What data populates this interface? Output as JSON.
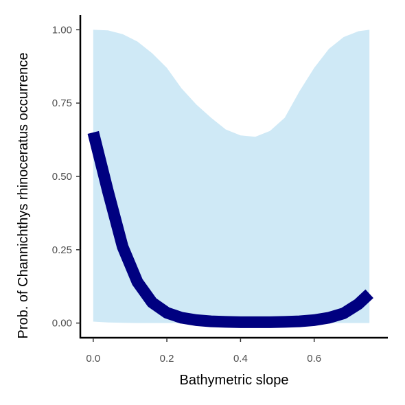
{
  "chart_data": {
    "type": "line",
    "title": "",
    "xlabel": "Bathymetric slope",
    "ylabel": "Prob. of  Channichthys rhinoceratus  occurrence",
    "xlim": [
      -0.035,
      0.8
    ],
    "ylim": [
      -0.05,
      1.05
    ],
    "x_ticks": [
      0.0,
      0.2,
      0.4,
      0.6
    ],
    "x_tick_labels": [
      "0.0",
      "0.2",
      "0.4",
      "0.6"
    ],
    "y_ticks": [
      0.0,
      0.25,
      0.5,
      0.75,
      1.0
    ],
    "y_tick_labels": [
      "0.00",
      "0.25",
      "0.50",
      "0.75",
      "1.00"
    ],
    "grid": false,
    "colors": {
      "line": "#000080",
      "ribbon": "#cfe9f6",
      "axis": "#000000",
      "tick_text": "#4d4d4d"
    },
    "series": [
      {
        "x": [
          0.0,
          0.04,
          0.08,
          0.12,
          0.16,
          0.2,
          0.24,
          0.28,
          0.32,
          0.36,
          0.4,
          0.44,
          0.48,
          0.52,
          0.56,
          0.6,
          0.64,
          0.68,
          0.72,
          0.75
        ],
        "y": [
          0.65,
          0.45,
          0.26,
          0.14,
          0.07,
          0.035,
          0.018,
          0.01,
          0.006,
          0.004,
          0.003,
          0.003,
          0.003,
          0.004,
          0.006,
          0.01,
          0.018,
          0.033,
          0.065,
          0.1
        ],
        "lower": [
          0.005,
          0.002,
          0.001,
          0.0,
          0.0,
          0.0,
          0.0,
          0.0,
          0.0,
          0.0,
          0.0,
          0.0,
          0.0,
          0.0,
          0.0,
          0.0,
          0.0,
          0.0,
          0.0,
          0.0
        ],
        "upper": [
          1.0,
          0.998,
          0.985,
          0.96,
          0.92,
          0.87,
          0.8,
          0.745,
          0.7,
          0.66,
          0.64,
          0.635,
          0.655,
          0.7,
          0.79,
          0.87,
          0.935,
          0.975,
          0.995,
          1.0
        ]
      }
    ]
  }
}
